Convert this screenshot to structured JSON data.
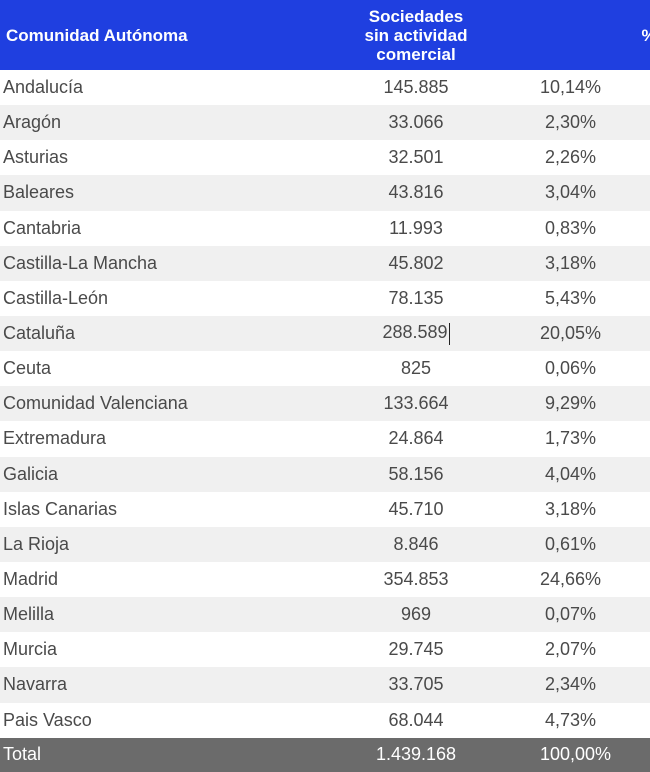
{
  "table": {
    "headers": {
      "region": "Comunidad Autónoma",
      "companies_line1": "Sociedades",
      "companies_line2": "sin actividad",
      "companies_line3": "comercial",
      "percent": "%"
    },
    "rows": [
      {
        "region": "Andalucía",
        "companies": "145.885",
        "percent": "10,14%"
      },
      {
        "region": "Aragón",
        "companies": "33.066",
        "percent": "2,30%"
      },
      {
        "region": "Asturias",
        "companies": "32.501",
        "percent": "2,26%"
      },
      {
        "region": "Baleares",
        "companies": "43.816",
        "percent": "3,04%"
      },
      {
        "region": "Cantabria",
        "companies": "11.993",
        "percent": "0,83%"
      },
      {
        "region": "Castilla-La Mancha",
        "companies": "45.802",
        "percent": "3,18%"
      },
      {
        "region": "Castilla-León",
        "companies": "78.135",
        "percent": "5,43%"
      },
      {
        "region": "Cataluña",
        "companies": "288.589",
        "percent": "20,05%"
      },
      {
        "region": "Ceuta",
        "companies": "825",
        "percent": "0,06%"
      },
      {
        "region": "Comunidad Valenciana",
        "companies": "133.664",
        "percent": "9,29%"
      },
      {
        "region": "Extremadura",
        "companies": "24.864",
        "percent": "1,73%"
      },
      {
        "region": "Galicia",
        "companies": "58.156",
        "percent": "4,04%"
      },
      {
        "region": "Islas Canarias",
        "companies": "45.710",
        "percent": "3,18%"
      },
      {
        "region": "La Rioja",
        "companies": "8.846",
        "percent": "0,61%"
      },
      {
        "region": "Madrid",
        "companies": "354.853",
        "percent": "24,66%"
      },
      {
        "region": "Melilla",
        "companies": "969",
        "percent": "0,07%"
      },
      {
        "region": "Murcia",
        "companies": "29.745",
        "percent": "2,07%"
      },
      {
        "region": "Navarra",
        "companies": "33.705",
        "percent": "2,34%"
      },
      {
        "region": "Pais Vasco",
        "companies": "68.044",
        "percent": "4,73%"
      }
    ],
    "total": {
      "label": "Total",
      "companies": "1.439.168",
      "percent": "100,00%"
    },
    "colors": {
      "header_bg": "#1f3fe0",
      "stripe": "#f0f0f0",
      "total_bg": "#6b6b6b"
    }
  }
}
